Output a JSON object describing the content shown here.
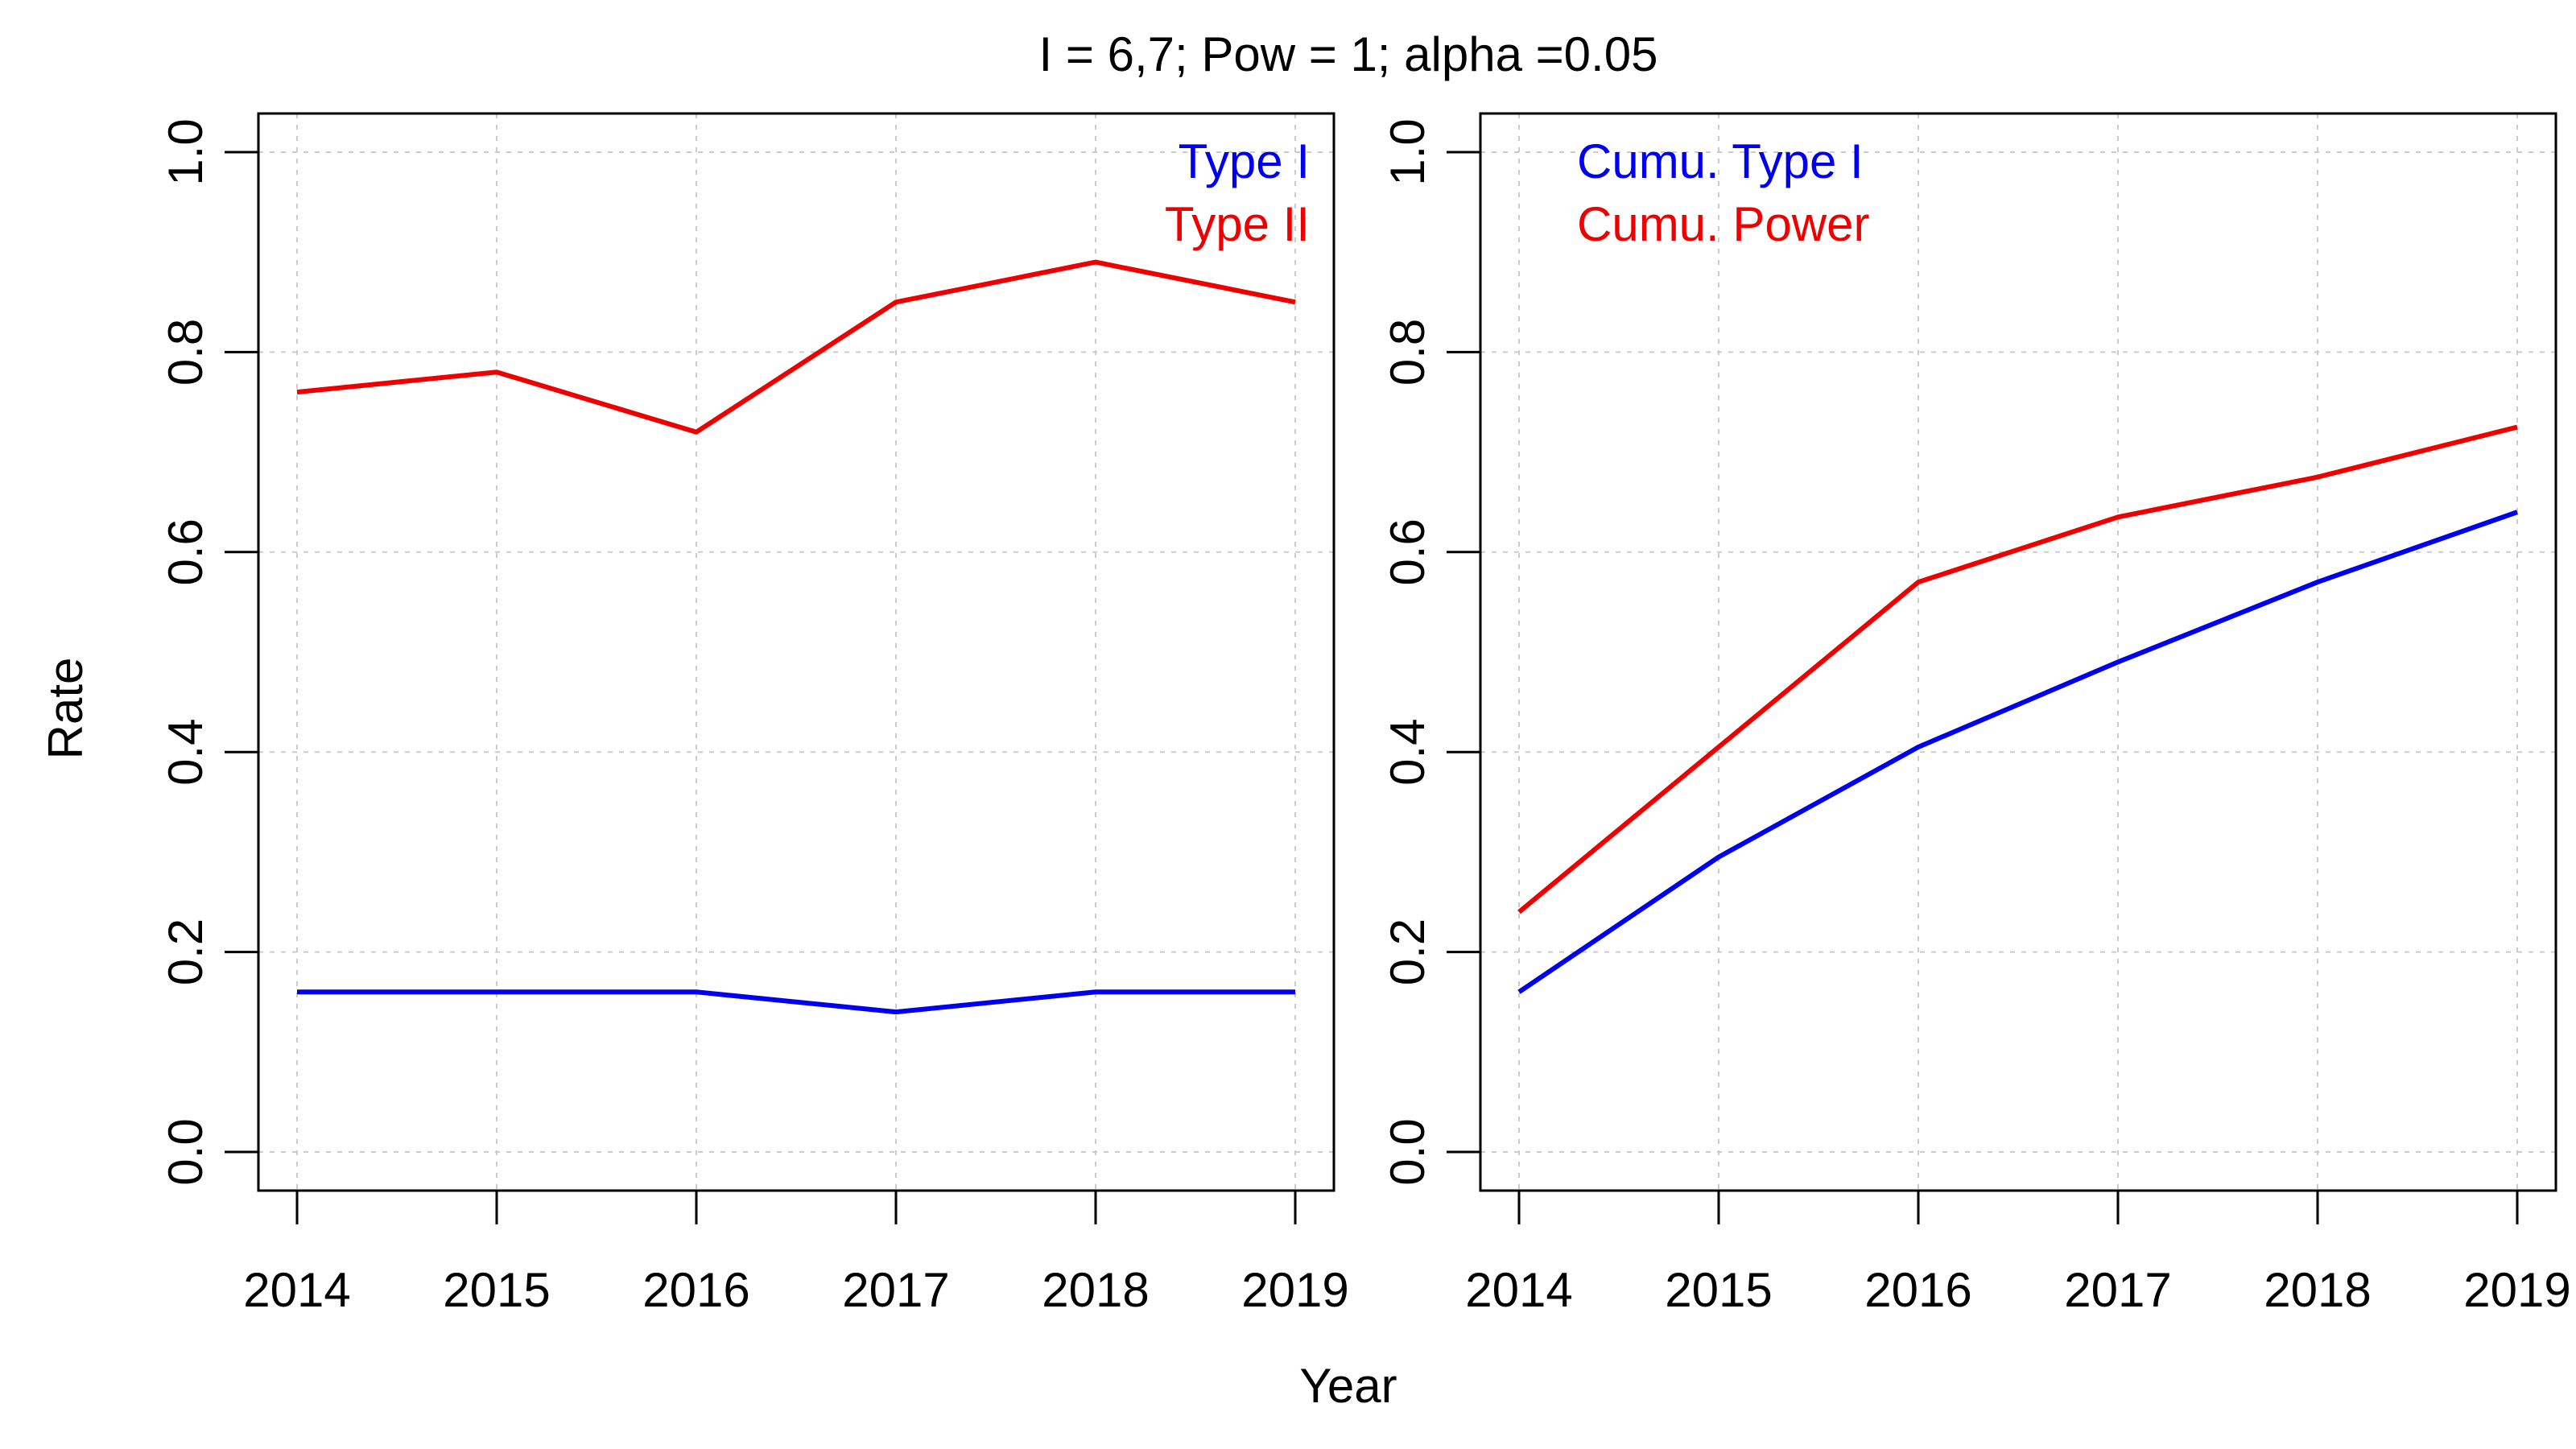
{
  "title": "I = 6,7; Pow = 1; alpha =0.05",
  "xlabel": "Year",
  "ylabel": "Rate",
  "colors": {
    "blue": "#0000ee",
    "red": "#ee0000",
    "grid": "#cccccc",
    "axis": "#000000"
  },
  "chart_data": [
    {
      "type": "line",
      "x": [
        2014,
        2015,
        2016,
        2017,
        2018,
        2019
      ],
      "xticks": [
        "2014",
        "2015",
        "2016",
        "2017",
        "2018",
        "2019"
      ],
      "ylim": [
        0,
        1
      ],
      "yticks": [
        "0.0",
        "0.2",
        "0.4",
        "0.6",
        "0.8",
        "1.0"
      ],
      "grid": true,
      "legend_position": "top-right",
      "series": [
        {
          "name": "Type I",
          "color": "#0000ee",
          "values": [
            0.16,
            0.16,
            0.16,
            0.14,
            0.16,
            0.16
          ]
        },
        {
          "name": "Type II",
          "color": "#ee0000",
          "values": [
            0.76,
            0.78,
            0.72,
            0.85,
            0.89,
            0.85
          ]
        }
      ]
    },
    {
      "type": "line",
      "x": [
        2014,
        2015,
        2016,
        2017,
        2018,
        2019
      ],
      "xticks": [
        "2014",
        "2015",
        "2016",
        "2017",
        "2018",
        "2019"
      ],
      "ylim": [
        0,
        1
      ],
      "yticks": [
        "0.0",
        "0.2",
        "0.4",
        "0.6",
        "0.8",
        "1.0"
      ],
      "grid": true,
      "legend_position": "top-left",
      "series": [
        {
          "name": "Cumu. Type I",
          "color": "#0000ee",
          "values": [
            0.16,
            0.295,
            0.405,
            0.49,
            0.57,
            0.64
          ]
        },
        {
          "name": "Cumu. Power",
          "color": "#ee0000",
          "values": [
            0.24,
            0.405,
            0.57,
            0.635,
            0.675,
            0.725
          ]
        }
      ]
    }
  ]
}
